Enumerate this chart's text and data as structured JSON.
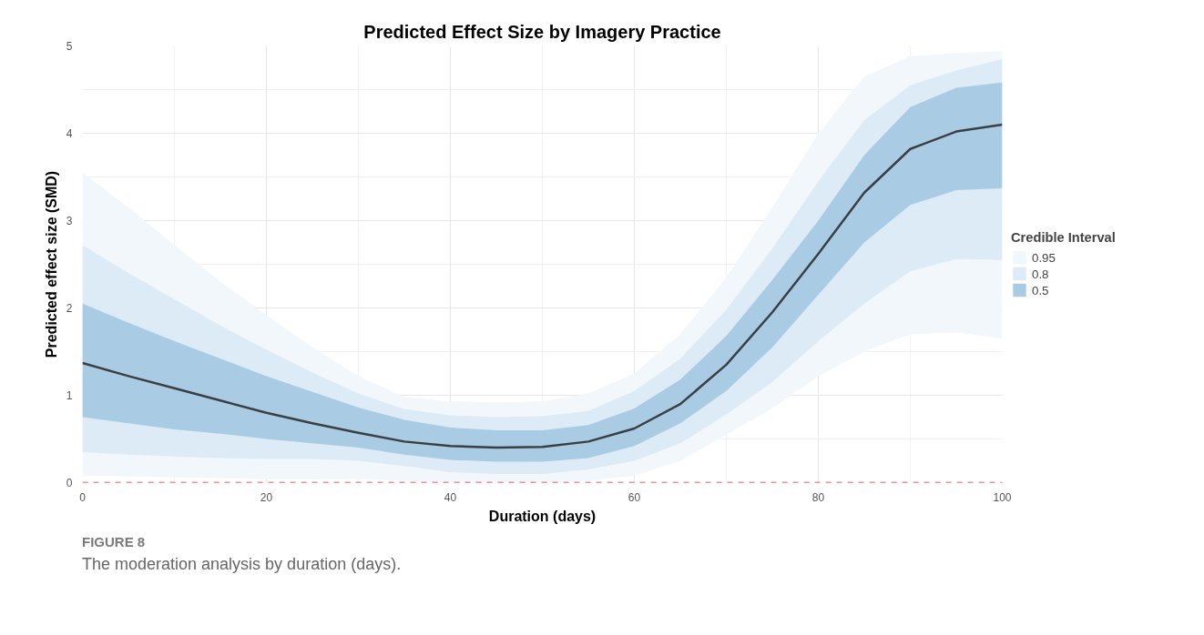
{
  "chart_data": {
    "type": "line",
    "title": "Predicted Effect Size by Imagery Practice",
    "xlabel": "Duration (days)",
    "ylabel": "Predicted effect size (SMD)",
    "legend_title": "Credible Interval",
    "x": [
      0,
      5,
      10,
      15,
      20,
      25,
      30,
      35,
      40,
      45,
      50,
      55,
      60,
      65,
      70,
      75,
      80,
      85,
      90,
      95,
      100
    ],
    "series": [
      {
        "name": "0.95",
        "type": "area",
        "color": "#f2f7fb",
        "values": [
          null,
          null,
          null,
          null,
          null,
          null,
          null,
          null,
          null,
          null,
          null,
          null,
          null,
          null,
          null,
          null,
          null,
          null,
          null,
          null,
          null
        ],
        "lower": [
          0.08,
          0.07,
          0.06,
          0.05,
          0.04,
          0.04,
          0.04,
          0.02,
          0.0,
          0.0,
          0.0,
          0.02,
          0.08,
          0.25,
          0.55,
          0.85,
          1.22,
          1.5,
          1.7,
          1.72,
          1.65
        ],
        "upper": [
          3.55,
          3.15,
          2.72,
          2.3,
          1.92,
          1.55,
          1.22,
          0.98,
          0.93,
          0.92,
          0.93,
          1.02,
          1.25,
          1.7,
          2.35,
          3.15,
          4.0,
          4.65,
          4.88,
          4.92,
          4.94
        ]
      },
      {
        "name": "0.8",
        "type": "area",
        "color": "#dcebf5",
        "values": [
          null,
          null,
          null,
          null,
          null,
          null,
          null,
          null,
          null,
          null,
          null,
          null,
          null,
          null,
          null,
          null,
          null,
          null,
          null,
          null,
          null
        ],
        "lower": [
          0.35,
          0.32,
          0.3,
          0.28,
          0.27,
          0.27,
          0.25,
          0.19,
          0.12,
          0.1,
          0.1,
          0.15,
          0.25,
          0.45,
          0.78,
          1.15,
          1.62,
          2.05,
          2.42,
          2.56,
          2.55
        ],
        "upper": [
          2.72,
          2.4,
          2.1,
          1.8,
          1.52,
          1.26,
          1.02,
          0.84,
          0.77,
          0.75,
          0.76,
          0.82,
          1.05,
          1.42,
          1.98,
          2.68,
          3.45,
          4.15,
          4.55,
          4.72,
          4.85
        ]
      },
      {
        "name": "0.5",
        "type": "area",
        "color": "#a9cbe3",
        "values": [
          null,
          null,
          null,
          null,
          null,
          null,
          null,
          null,
          null,
          null,
          null,
          null,
          null,
          null,
          null,
          null,
          null,
          null,
          null,
          null,
          null
        ],
        "lower": [
          0.75,
          0.68,
          0.61,
          0.56,
          0.5,
          0.45,
          0.4,
          0.32,
          0.26,
          0.24,
          0.24,
          0.28,
          0.42,
          0.68,
          1.05,
          1.55,
          2.15,
          2.75,
          3.18,
          3.35,
          3.37
        ],
        "upper": [
          2.05,
          1.83,
          1.62,
          1.42,
          1.22,
          1.04,
          0.86,
          0.72,
          0.63,
          0.6,
          0.6,
          0.66,
          0.85,
          1.18,
          1.68,
          2.32,
          3.0,
          3.75,
          4.3,
          4.52,
          4.58
        ]
      },
      {
        "color": "#3a3f44",
        "values": [
          1.37,
          1.22,
          1.08,
          0.94,
          0.8,
          0.68,
          0.57,
          0.47,
          0.42,
          0.4,
          0.41,
          0.47,
          0.62,
          0.9,
          1.35,
          1.95,
          2.62,
          3.32,
          3.82,
          4.02,
          4.1
        ]
      }
    ],
    "xlim": [
      0,
      100
    ],
    "xticks": [
      0,
      20,
      40,
      60,
      80,
      100
    ],
    "ylim": [
      0,
      5
    ],
    "yticks": [
      0,
      1,
      2,
      3,
      4,
      5
    ],
    "ref_lines": [
      {
        "axis": "y",
        "value": 0,
        "color": "#e8262a",
        "line_style": "dashed"
      }
    ],
    "grid": true,
    "legend": "right",
    "line_style": "solid",
    "marker": "none",
    "annotations": [
      "FIGURE 8",
      "The moderation analysis by duration (days)."
    ]
  }
}
